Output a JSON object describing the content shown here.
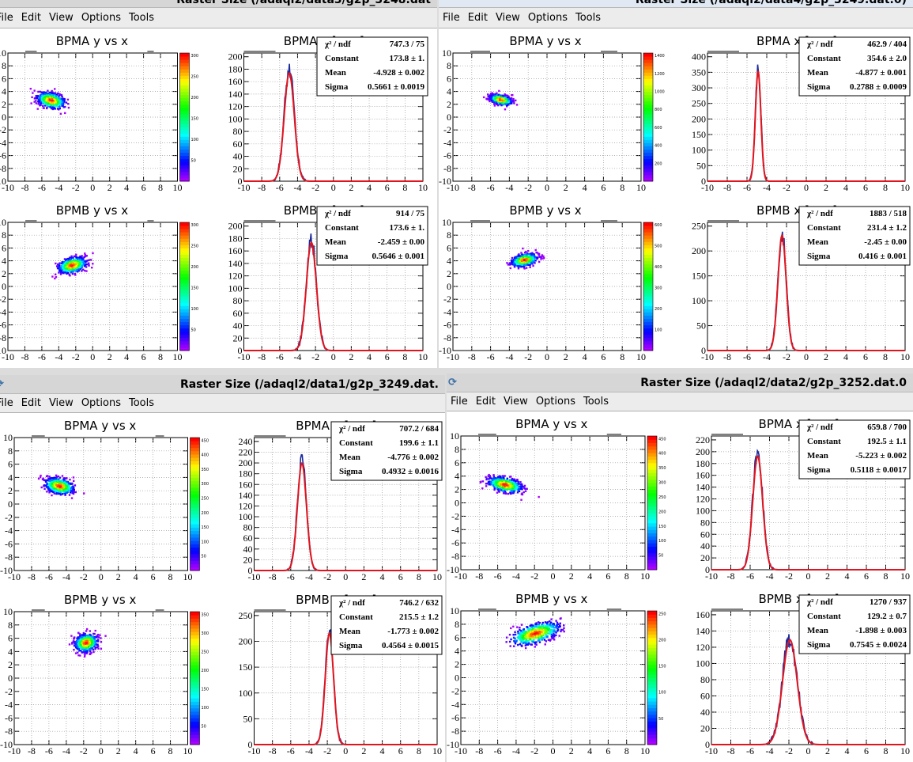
{
  "menu": [
    "File",
    "Edit",
    "View",
    "Options",
    "Tools"
  ],
  "axis_ticks": [
    "-10",
    "-8",
    "-6",
    "-4",
    "-2",
    "0",
    "2",
    "4",
    "6",
    "8",
    "10"
  ],
  "windows": [
    {
      "title": "Raster Size (/adaql2/data3/g2p_3248.dat",
      "panels": [
        {
          "kind": "scatter",
          "title": "BPMA y vs x",
          "cx": -4.9,
          "cy": 2.6,
          "sx": 0.85,
          "sy": 0.55,
          "rot": -25,
          "zmax": 300,
          "zticks": [
            "50",
            "100",
            "150",
            "200",
            "250",
            "300"
          ]
        },
        {
          "kind": "hist",
          "title": "BPMA x [mm]",
          "mean": -4.928,
          "sigma": 0.5661,
          "peak": 173.8,
          "ymax": 200,
          "yticks": [
            "0",
            "20",
            "40",
            "60",
            "80",
            "100",
            "120",
            "140",
            "160",
            "180",
            "200"
          ],
          "stats": [
            [
              "χ² / ndf",
              "747.3 / 75"
            ],
            [
              "Constant",
              "173.8 ± 1."
            ],
            [
              "Mean",
              "-4.928 ± 0.002"
            ],
            [
              "Sigma",
              "0.5661 ± 0.0019"
            ]
          ]
        },
        {
          "kind": "scatter",
          "title": "BPMB y vs x",
          "cx": -2.4,
          "cy": 3.3,
          "sx": 0.85,
          "sy": 0.55,
          "rot": 25,
          "zmax": 300,
          "zticks": [
            "50",
            "100",
            "150",
            "200",
            "250",
            "300"
          ]
        },
        {
          "kind": "hist",
          "title": "BPMB x [mm]",
          "mean": -2.459,
          "sigma": 0.5646,
          "peak": 173.6,
          "ymax": 200,
          "yticks": [
            "0",
            "20",
            "40",
            "60",
            "80",
            "100",
            "120",
            "140",
            "160",
            "180",
            "200"
          ],
          "stats": [
            [
              "χ² / ndf",
              "914 / 75"
            ],
            [
              "Constant",
              "173.6 ± 1."
            ],
            [
              "Mean",
              "-2.459 ± 0.00"
            ],
            [
              "Sigma",
              "0.5646 ± 0.001"
            ]
          ]
        }
      ]
    },
    {
      "title": "Raster Size (/adaql2/data4/g2p_3249.dat.0)",
      "panels": [
        {
          "kind": "scatter",
          "title": "BPMA y vs x",
          "cx": -4.9,
          "cy": 2.7,
          "sx": 0.6,
          "sy": 0.35,
          "rot": -25,
          "zmax": 1400,
          "zticks": [
            "200",
            "400",
            "600",
            "800",
            "1000",
            "1200",
            "1400"
          ]
        },
        {
          "kind": "hist",
          "title": "BPMA x [mm]",
          "mean": -4.877,
          "sigma": 0.2788,
          "peak": 354.6,
          "ymax": 400,
          "yticks": [
            "0",
            "50",
            "100",
            "150",
            "200",
            "250",
            "300",
            "350",
            "400"
          ],
          "stats": [
            [
              "χ² / ndf",
              "462.9 / 404"
            ],
            [
              "Constant",
              "354.6 ± 2.0"
            ],
            [
              "Mean",
              "-4.877 ± 0.001"
            ],
            [
              "Sigma",
              "0.2788 ± 0.0009"
            ]
          ]
        },
        {
          "kind": "scatter",
          "title": "BPMB y vs x",
          "cx": -2.4,
          "cy": 4.1,
          "sx": 0.7,
          "sy": 0.45,
          "rot": 25,
          "zmax": 600,
          "zticks": [
            "100",
            "200",
            "300",
            "400",
            "500",
            "600"
          ]
        },
        {
          "kind": "hist",
          "title": "BPMB x [mm]",
          "mean": -2.45,
          "sigma": 0.416,
          "peak": 231.4,
          "ymax": 250,
          "yticks": [
            "0",
            "50",
            "100",
            "150",
            "200",
            "250"
          ],
          "stats": [
            [
              "χ² / ndf",
              "1883 / 518"
            ],
            [
              "Constant",
              "231.4 ± 1.2"
            ],
            [
              "Mean",
              "-2.45 ± 0.00"
            ],
            [
              "Sigma",
              "0.416 ± 0.001"
            ]
          ]
        }
      ]
    },
    {
      "title": "Raster Size (/adaql2/data1/g2p_3249.dat.",
      "panels": [
        {
          "kind": "scatter",
          "title": "BPMA y vs x",
          "cx": -4.8,
          "cy": 2.7,
          "sx": 0.85,
          "sy": 0.55,
          "rot": -22,
          "zmax": 450,
          "zticks": [
            "50",
            "100",
            "150",
            "200",
            "250",
            "300",
            "350",
            "400",
            "450"
          ]
        },
        {
          "kind": "hist",
          "title": "BPMA x [mm]",
          "mean": -4.776,
          "sigma": 0.4932,
          "peak": 199.6,
          "ymax": 240,
          "yticks": [
            "0",
            "20",
            "40",
            "60",
            "80",
            "100",
            "120",
            "140",
            "160",
            "180",
            "200",
            "220",
            "240"
          ],
          "stats": [
            [
              "χ² / ndf",
              "707.2 / 684"
            ],
            [
              "Constant",
              "199.6 ± 1.1"
            ],
            [
              "Mean",
              "-4.776 ± 0.002"
            ],
            [
              "Sigma",
              "0.4932 ± 0.0016"
            ]
          ]
        },
        {
          "kind": "scatter",
          "title": "BPMB y vs x",
          "cx": -1.7,
          "cy": 5.3,
          "sx": 0.7,
          "sy": 0.6,
          "rot": 50,
          "zmax": 350,
          "zticks": [
            "50",
            "100",
            "150",
            "200",
            "250",
            "300",
            "350"
          ]
        },
        {
          "kind": "hist",
          "title": "BPMB x [mm]",
          "mean": -1.773,
          "sigma": 0.4564,
          "peak": 215.5,
          "ymax": 250,
          "yticks": [
            "0",
            "50",
            "100",
            "150",
            "200",
            "250"
          ],
          "stats": [
            [
              "χ² / ndf",
              "746.2 / 632"
            ],
            [
              "Constant",
              "215.5 ± 1.2"
            ],
            [
              "Mean",
              "-1.773 ± 0.002"
            ],
            [
              "Sigma",
              "0.4564 ± 0.0015"
            ]
          ]
        }
      ]
    },
    {
      "title": "Raster Size (/adaql2/data2/g2p_3252.dat.0",
      "panels": [
        {
          "kind": "scatter",
          "title": "BPMA y vs x",
          "cx": -5.2,
          "cy": 2.7,
          "sx": 0.95,
          "sy": 0.5,
          "rot": -20,
          "zmax": 450,
          "zticks": [
            "50",
            "100",
            "150",
            "200",
            "250",
            "300",
            "350",
            "400",
            "450"
          ]
        },
        {
          "kind": "hist",
          "title": "BPMA x [mm]",
          "mean": -5.223,
          "sigma": 0.5118,
          "peak": 192.5,
          "ymax": 220,
          "yticks": [
            "0",
            "20",
            "40",
            "60",
            "80",
            "100",
            "120",
            "140",
            "160",
            "180",
            "200",
            "220"
          ],
          "stats": [
            [
              "χ² / ndf",
              "659.8 / 700"
            ],
            [
              "Constant",
              "192.5 ± 1.1"
            ],
            [
              "Mean",
              "-5.223 ± 0.002"
            ],
            [
              "Sigma",
              "0.5118 ± 0.0017"
            ]
          ]
        },
        {
          "kind": "scatter",
          "title": "BPMB y vs x",
          "cx": -1.9,
          "cy": 6.6,
          "sx": 1.4,
          "sy": 0.65,
          "rot": 25,
          "zmax": 250,
          "zticks": [
            "50",
            "100",
            "150",
            "200",
            "250"
          ]
        },
        {
          "kind": "hist",
          "title": "BPMB x [mm]",
          "mean": -1.898,
          "sigma": 0.7545,
          "peak": 129.2,
          "ymax": 160,
          "yticks": [
            "0",
            "20",
            "40",
            "60",
            "80",
            "100",
            "120",
            "140",
            "160"
          ],
          "stats": [
            [
              "χ² / ndf",
              "1270 / 937"
            ],
            [
              "Constant",
              "129.2 ± 0.7"
            ],
            [
              "Mean",
              "-1.898 ± 0.003"
            ],
            [
              "Sigma",
              "0.7545 ± 0.0024"
            ]
          ]
        }
      ]
    }
  ]
}
